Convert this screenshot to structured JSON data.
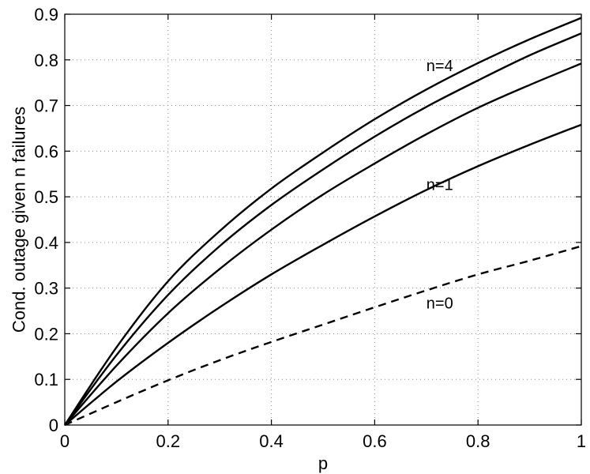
{
  "chart_data": {
    "type": "line",
    "title": "",
    "xlabel": "p",
    "ylabel": "Cond. outage given n failures",
    "xlim": [
      0,
      1
    ],
    "ylim": [
      0,
      0.9
    ],
    "xticks": [
      0,
      0.2,
      0.4,
      0.6,
      0.8,
      1
    ],
    "xtick_labels": [
      "0",
      "0.2",
      "0.4",
      "0.6",
      "0.8",
      "1"
    ],
    "yticks": [
      0,
      0.1,
      0.2,
      0.3,
      0.4,
      0.5,
      0.6,
      0.7,
      0.8,
      0.9
    ],
    "ytick_labels": [
      "0",
      "0.1",
      "0.2",
      "0.3",
      "0.4",
      "0.5",
      "0.6",
      "0.7",
      "0.8",
      "0.9"
    ],
    "grid": true,
    "x": [
      0,
      0.1,
      0.2,
      0.3,
      0.4,
      0.5,
      0.6,
      0.7,
      0.8,
      0.9,
      1
    ],
    "series": [
      {
        "name": "n=0",
        "style": "dashed",
        "values": [
          0,
          0.05,
          0.098,
          0.142,
          0.182,
          0.22,
          0.258,
          0.295,
          0.33,
          0.36,
          0.392
        ]
      },
      {
        "name": "n=1",
        "style": "solid",
        "values": [
          0,
          0.095,
          0.18,
          0.258,
          0.33,
          0.395,
          0.457,
          0.515,
          0.567,
          0.614,
          0.658
        ]
      },
      {
        "name": "",
        "style": "solid",
        "values": [
          0,
          0.13,
          0.245,
          0.342,
          0.428,
          0.505,
          0.573,
          0.637,
          0.695,
          0.745,
          0.792
        ]
      },
      {
        "name": "",
        "style": "solid",
        "values": [
          0,
          0.153,
          0.285,
          0.392,
          0.482,
          0.56,
          0.632,
          0.697,
          0.755,
          0.81,
          0.858
        ]
      },
      {
        "name": "n=4",
        "style": "solid",
        "values": [
          0,
          0.17,
          0.315,
          0.425,
          0.518,
          0.597,
          0.67,
          0.735,
          0.793,
          0.845,
          0.892
        ]
      }
    ],
    "annotations": [
      {
        "text": "n=4",
        "x": 0.7,
        "y": 0.775
      },
      {
        "text": "n=1",
        "x": 0.7,
        "y": 0.515
      },
      {
        "text": "n=0",
        "x": 0.7,
        "y": 0.255
      }
    ]
  }
}
